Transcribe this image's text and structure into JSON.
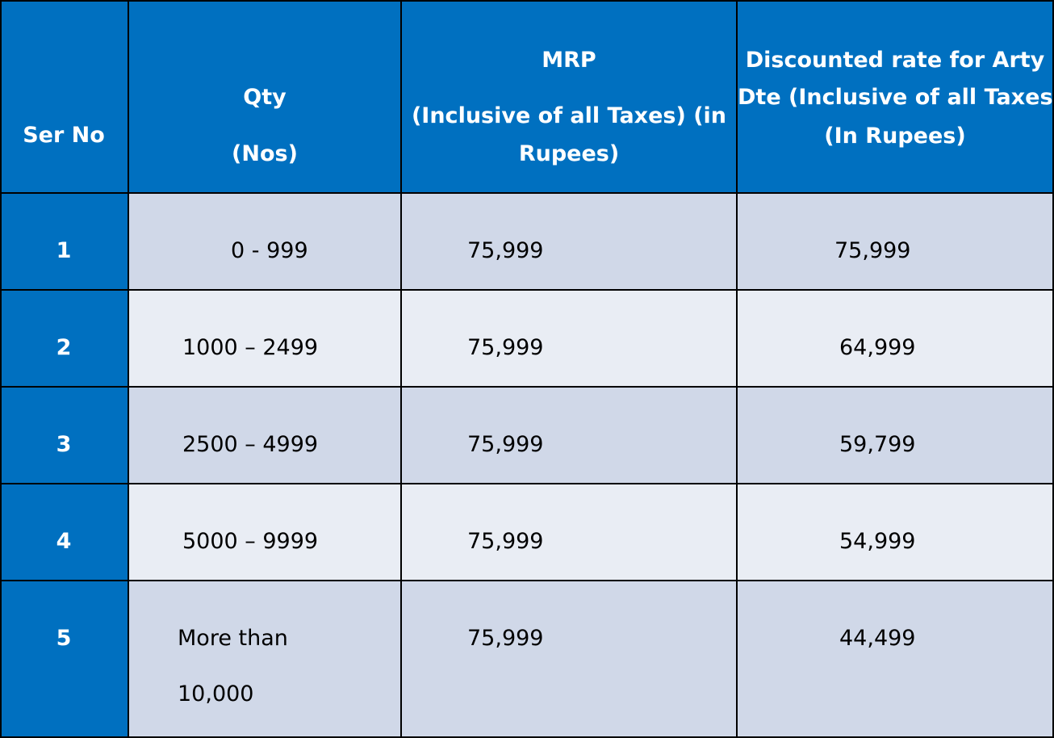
{
  "header": {
    "ser_no": "Ser No",
    "qty_line1": "Qty",
    "qty_line2": "(Nos)",
    "mrp_line1": "MRP",
    "mrp_line2": "(Inclusive of all Taxes) (in",
    "mrp_line3": "Rupees)",
    "disc_line1": "Discounted rate for Arty",
    "disc_line2": "Dte (Inclusive of all Taxes)",
    "disc_line3": "(In Rupees)"
  },
  "rows": [
    {
      "ser": "1",
      "qty": "0 - 999",
      "mrp": "75,999",
      "disc": "75,999"
    },
    {
      "ser": "2",
      "qty": "1000 – 2499",
      "mrp": "75,999",
      "disc": "64,999"
    },
    {
      "ser": "3",
      "qty": "2500 – 4999",
      "mrp": "75,999",
      "disc": "59,799"
    },
    {
      "ser": "4",
      "qty": "5000 – 9999",
      "mrp": "75,999",
      "disc": "54,999"
    },
    {
      "ser": "5",
      "qty_line1": "More than",
      "qty_line2": "10,000",
      "mrp": "75,999",
      "disc": "44,499"
    }
  ],
  "colors": {
    "header_bg": "#0070c0",
    "row_odd_bg": "#d0d8e8",
    "row_even_bg": "#e9edf4"
  }
}
